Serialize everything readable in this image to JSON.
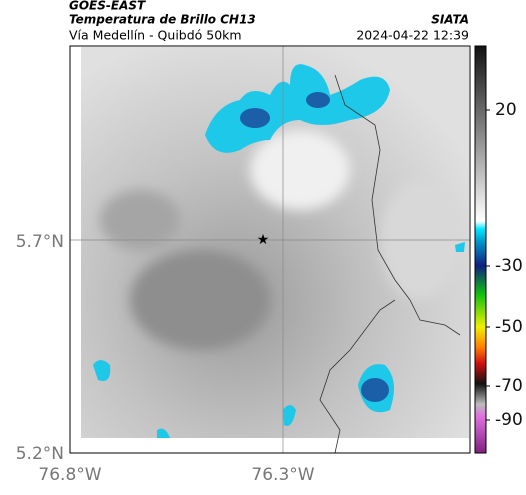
{
  "header": {
    "source": "GOES-EAST",
    "title": "Temperatura de Brillo CH13",
    "agency": "SIATA",
    "route": "Vía Medellín - Quibdó 50km",
    "datetime": "2024-04-22 12:39"
  },
  "axes": {
    "lat_labels": [
      "5.7°N",
      "5.2°N"
    ],
    "lon_labels": [
      "76.8°W",
      "76.3°W"
    ]
  },
  "colorbar": {
    "ticks": [
      20,
      -30,
      -50,
      -70,
      -90
    ]
  }
}
